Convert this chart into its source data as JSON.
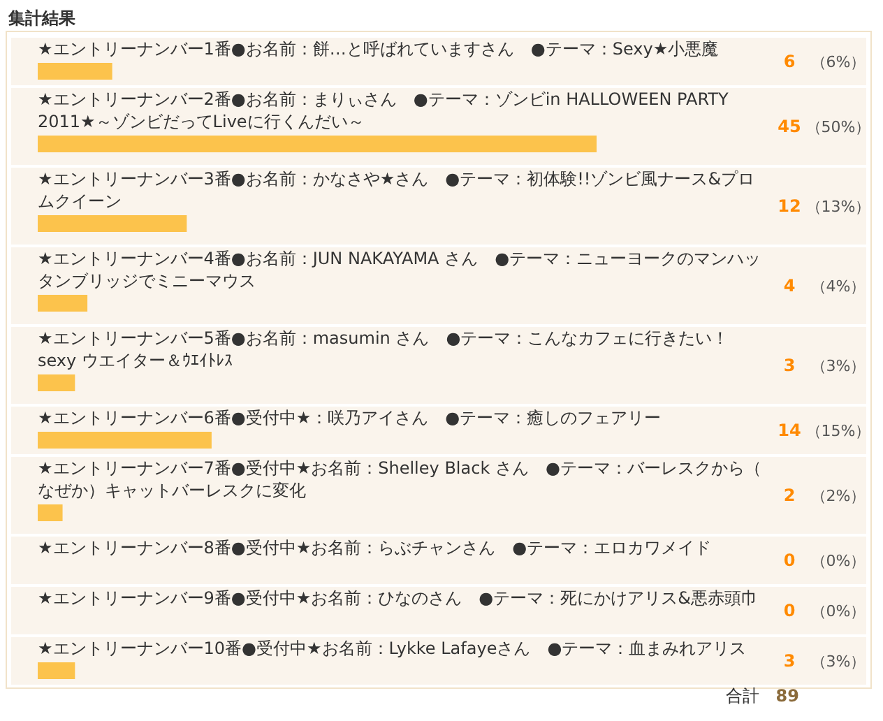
{
  "chart_data": {
    "type": "bar",
    "orientation": "horizontal",
    "title": "集計結果",
    "categories": [
      "★エントリーナンバー1番●お名前：餅…と呼ばれていますさん　●テーマ：Sexy★小悪魔",
      "★エントリーナンバー2番●お名前：まりぃさん　●テーマ：ゾンビin HALLOWEEN PARTY 2011★～ゾンビだってLiveに行くんだい～",
      "★エントリーナンバー3番●お名前：かなさや★さん　●テーマ：初体験!!ゾンビ風ナース&プロムクイーン",
      "★エントリーナンバー4番●お名前：JUN NAKAYAMA さん　●テーマ：ニューヨークのマンハッタンブリッジでミニーマウス",
      "★エントリーナンバー5番●お名前：masumin さん　●テーマ：こんなカフェに行きたい！sexy ウエイター＆ｳｴｲﾄﾚｽ",
      "★エントリーナンバー6番●受付中★：咲乃アイさん　●テーマ：癒しのフェアリー",
      "★エントリーナンバー7番●受付中★お名前：Shelley Black さん　●テーマ：バーレスクから（なぜか）キャットバーレスクに変化",
      "★エントリーナンバー8番●受付中★お名前：らぶチャンさん　●テーマ：エロカワメイド",
      "★エントリーナンバー9番●受付中★お名前：ひなのさん　●テーマ：死にかけアリス&悪赤頭巾",
      "★エントリーナンバー10番●受付中★お名前：Lykke Lafayeさん　●テーマ：血まみれアリス"
    ],
    "values": [
      6,
      45,
      12,
      4,
      3,
      14,
      2,
      0,
      0,
      3
    ],
    "color": "#fcc34c",
    "data_labels": true,
    "annotations": [
      "（6%）",
      "（50%）",
      "（13%）",
      "（4%）",
      "（3%）",
      "（15%）",
      "（2%）",
      "（0%）",
      "（0%）",
      "（3%）",
      "合計　**89**"
    ]
  }
}
